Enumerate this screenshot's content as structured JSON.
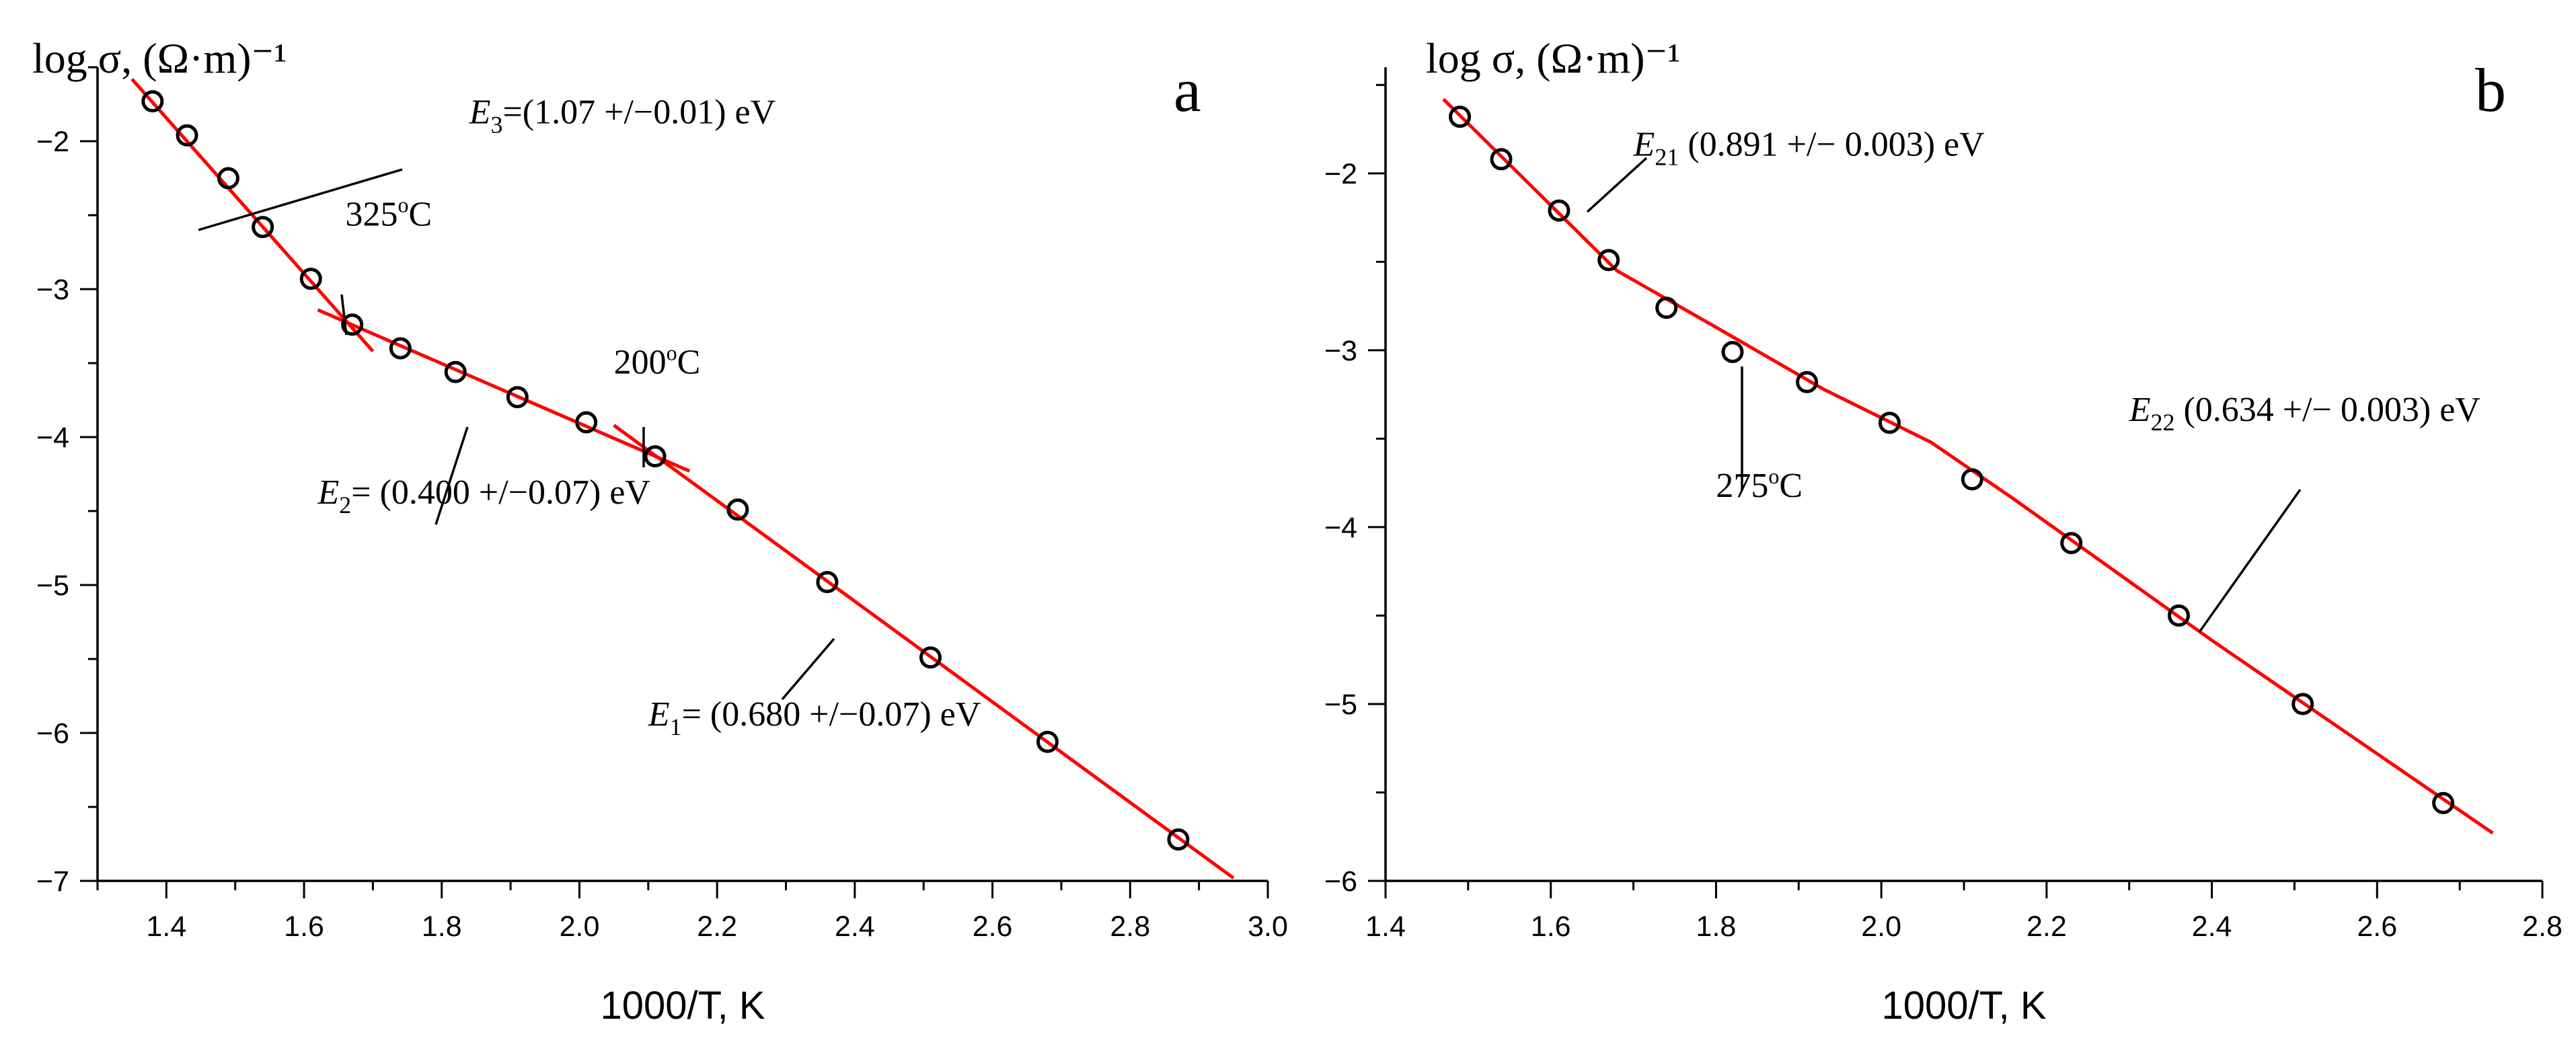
{
  "chart_data": [
    {
      "type": "scatter",
      "panel": "a",
      "ylabel": "log σ, (Ω·m)⁻¹",
      "xlabel": "1000/T, K",
      "xlim": [
        1.3,
        3.0
      ],
      "ylim": [
        -7,
        -1.5
      ],
      "xticks": [
        "1.4",
        "1.6",
        "1.8",
        "2.0",
        "2.2",
        "2.4",
        "2.6",
        "2.8",
        "3.0"
      ],
      "yticks": [
        "-2",
        "-3",
        "-4",
        "-5",
        "-6",
        "-7"
      ],
      "series": [
        {
          "name": "data",
          "x": [
            1.38,
            1.43,
            1.49,
            1.54,
            1.61,
            1.67,
            1.74,
            1.82,
            1.91,
            2.01,
            2.11,
            2.23,
            2.36,
            2.51,
            2.68,
            2.87
          ],
          "y": [
            -1.73,
            -1.96,
            -2.25,
            -2.58,
            -2.93,
            -3.24,
            -3.4,
            -3.56,
            -3.73,
            -3.9,
            -4.13,
            -4.49,
            -4.98,
            -5.49,
            -6.06,
            -6.72
          ]
        }
      ],
      "fits": [
        {
          "name": "E3",
          "x": [
            1.35,
            1.7
          ],
          "y": [
            -1.58,
            -3.42
          ]
        },
        {
          "name": "E2",
          "x": [
            1.62,
            2.16
          ],
          "y": [
            -3.14,
            -4.23
          ]
        },
        {
          "name": "E1",
          "x": [
            2.05,
            2.95
          ],
          "y": [
            -3.92,
            -6.98
          ]
        }
      ],
      "annotations": [
        {
          "label": "E3",
          "label_main": "E",
          "label_sub": "3",
          "text": "=(1.07 +/−0.01) eV",
          "x": 1.84,
          "y": -1.88
        },
        {
          "label": "325C",
          "text": "325",
          "sup": "o",
          "unit": "C",
          "x": 1.66,
          "y": -2.57
        },
        {
          "label": "200C",
          "text": "200",
          "sup": "o",
          "unit": "C",
          "x": 2.05,
          "y": -3.57
        },
        {
          "label": "E2",
          "label_main": "E",
          "label_sub": "2",
          "text": "= (0.400 +/−0.07) eV",
          "x": 1.62,
          "y": -4.45
        },
        {
          "label": "E1",
          "label_main": "E",
          "label_sub": "1",
          "text": "= (0.680 +/−0.07) eV",
          "x": 2.1,
          "y": -5.95
        }
      ]
    },
    {
      "type": "scatter",
      "panel": "b",
      "ylabel": "log σ, (Ω·m)⁻¹",
      "xlabel": "1000/T, K",
      "xlim": [
        1.4,
        2.8
      ],
      "ylim": [
        -6,
        -1.4
      ],
      "xticks": [
        "1.4",
        "1.6",
        "1.8",
        "2.0",
        "2.2",
        "2.4",
        "2.6",
        "2.8"
      ],
      "yticks": [
        "-2",
        "-3",
        "-4",
        "-5",
        "-6"
      ],
      "series": [
        {
          "name": "data",
          "x": [
            1.49,
            1.54,
            1.61,
            1.67,
            1.74,
            1.82,
            1.91,
            2.01,
            2.11,
            2.23,
            2.36,
            2.51,
            2.68
          ],
          "y": [
            -1.68,
            -1.92,
            -2.21,
            -2.49,
            -2.76,
            -3.01,
            -3.18,
            -3.41,
            -3.73,
            -4.09,
            -4.5,
            -5.0,
            -5.56
          ]
        }
      ],
      "fits": [
        {
          "name": "E21",
          "x": [
            1.47,
            1.68,
            1.8,
            1.93,
            2.06,
            2.16,
            2.4,
            2.74
          ],
          "y": [
            -1.58,
            -2.55,
            -2.87,
            -3.22,
            -3.52,
            -3.84,
            -4.64,
            -5.73
          ]
        }
      ],
      "annotations": [
        {
          "label": "E21",
          "label_main": "E",
          "label_sub": "21",
          "text": " (0.891 +/− 0.003) eV",
          "x": 1.7,
          "y": -1.9
        },
        {
          "label": "275C",
          "text": "275",
          "sup": "o",
          "unit": "C",
          "x": 1.8,
          "y": -3.83
        },
        {
          "label": "E22",
          "label_main": "E",
          "label_sub": "22",
          "text": " (0.634 +/− 0.003) eV",
          "x": 2.3,
          "y": -3.4
        }
      ]
    }
  ]
}
